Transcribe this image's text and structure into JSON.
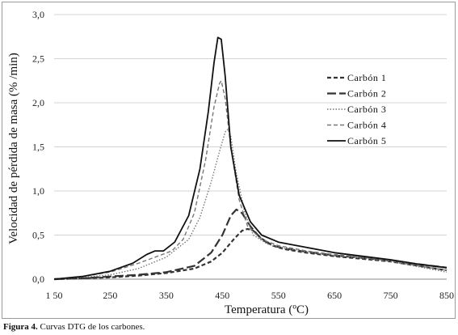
{
  "chart_data": {
    "type": "line",
    "title": "",
    "xlabel": "Temperatura (ºC)",
    "ylabel": "Velocidad de pérdida de masa (% /min)",
    "xlim": [
      150,
      850
    ],
    "ylim": [
      0,
      3.0
    ],
    "xticks": [
      150,
      250,
      350,
      450,
      550,
      650,
      750,
      850
    ],
    "xtick_labels": [
      "1 50",
      "250",
      "350",
      "450",
      "550",
      "650",
      "750",
      "850"
    ],
    "yticks": [
      0,
      0.5,
      1.0,
      1.5,
      2.0,
      2.5,
      3.0
    ],
    "ytick_labels": [
      "0,0",
      "0,5",
      "1,0",
      "1,5",
      "2,0",
      "2,5",
      "3,0"
    ],
    "grid": "horizontal",
    "legend": "right",
    "series": [
      {
        "name": "Carbón 1",
        "style": "short-dash",
        "color": "#333333",
        "points": [
          [
            150,
            0.0
          ],
          [
            200,
            0.01
          ],
          [
            250,
            0.02
          ],
          [
            300,
            0.04
          ],
          [
            350,
            0.07
          ],
          [
            400,
            0.12
          ],
          [
            430,
            0.2
          ],
          [
            450,
            0.3
          ],
          [
            470,
            0.45
          ],
          [
            485,
            0.55
          ],
          [
            495,
            0.57
          ],
          [
            505,
            0.55
          ],
          [
            520,
            0.46
          ],
          [
            540,
            0.38
          ],
          [
            560,
            0.34
          ],
          [
            600,
            0.3
          ],
          [
            650,
            0.26
          ],
          [
            700,
            0.23
          ],
          [
            750,
            0.2
          ],
          [
            800,
            0.15
          ],
          [
            850,
            0.1
          ]
        ]
      },
      {
        "name": "Carbón 2",
        "style": "long-dash",
        "color": "#333333",
        "points": [
          [
            150,
            0.0
          ],
          [
            200,
            0.01
          ],
          [
            250,
            0.03
          ],
          [
            300,
            0.05
          ],
          [
            350,
            0.08
          ],
          [
            400,
            0.15
          ],
          [
            430,
            0.3
          ],
          [
            450,
            0.5
          ],
          [
            465,
            0.72
          ],
          [
            475,
            0.79
          ],
          [
            485,
            0.75
          ],
          [
            500,
            0.6
          ],
          [
            520,
            0.45
          ],
          [
            540,
            0.38
          ],
          [
            560,
            0.35
          ],
          [
            600,
            0.31
          ],
          [
            650,
            0.27
          ],
          [
            700,
            0.24
          ],
          [
            750,
            0.21
          ],
          [
            800,
            0.17
          ],
          [
            850,
            0.13
          ]
        ]
      },
      {
        "name": "Carbón 3",
        "style": "dotted",
        "color": "#777777",
        "points": [
          [
            150,
            0.0
          ],
          [
            200,
            0.02
          ],
          [
            250,
            0.05
          ],
          [
            300,
            0.12
          ],
          [
            350,
            0.25
          ],
          [
            390,
            0.45
          ],
          [
            410,
            0.7
          ],
          [
            430,
            1.1
          ],
          [
            445,
            1.45
          ],
          [
            455,
            1.67
          ],
          [
            460,
            1.7
          ],
          [
            465,
            1.62
          ],
          [
            475,
            1.2
          ],
          [
            490,
            0.75
          ],
          [
            505,
            0.5
          ],
          [
            530,
            0.4
          ],
          [
            560,
            0.35
          ],
          [
            600,
            0.31
          ],
          [
            650,
            0.27
          ],
          [
            700,
            0.24
          ],
          [
            750,
            0.2
          ],
          [
            800,
            0.14
          ],
          [
            850,
            0.08
          ]
        ]
      },
      {
        "name": "Carbón 4",
        "style": "dashed",
        "color": "#777777",
        "points": [
          [
            150,
            0.0
          ],
          [
            200,
            0.03
          ],
          [
            250,
            0.08
          ],
          [
            300,
            0.18
          ],
          [
            330,
            0.25
          ],
          [
            360,
            0.32
          ],
          [
            380,
            0.45
          ],
          [
            400,
            0.75
          ],
          [
            420,
            1.35
          ],
          [
            435,
            1.95
          ],
          [
            445,
            2.22
          ],
          [
            448,
            2.25
          ],
          [
            455,
            2.05
          ],
          [
            465,
            1.5
          ],
          [
            480,
            0.9
          ],
          [
            495,
            0.6
          ],
          [
            520,
            0.45
          ],
          [
            550,
            0.38
          ],
          [
            600,
            0.32
          ],
          [
            650,
            0.28
          ],
          [
            700,
            0.25
          ],
          [
            750,
            0.21
          ],
          [
            800,
            0.15
          ],
          [
            850,
            0.1
          ]
        ]
      },
      {
        "name": "Carbón 5",
        "style": "solid",
        "color": "#111111",
        "points": [
          [
            150,
            0.0
          ],
          [
            200,
            0.03
          ],
          [
            250,
            0.09
          ],
          [
            290,
            0.18
          ],
          [
            315,
            0.28
          ],
          [
            330,
            0.32
          ],
          [
            345,
            0.32
          ],
          [
            365,
            0.42
          ],
          [
            390,
            0.72
          ],
          [
            410,
            1.25
          ],
          [
            425,
            1.9
          ],
          [
            435,
            2.45
          ],
          [
            442,
            2.74
          ],
          [
            448,
            2.72
          ],
          [
            455,
            2.3
          ],
          [
            465,
            1.5
          ],
          [
            480,
            0.95
          ],
          [
            500,
            0.65
          ],
          [
            520,
            0.5
          ],
          [
            550,
            0.42
          ],
          [
            600,
            0.36
          ],
          [
            650,
            0.3
          ],
          [
            700,
            0.26
          ],
          [
            750,
            0.22
          ],
          [
            800,
            0.17
          ],
          [
            850,
            0.13
          ]
        ]
      }
    ]
  },
  "caption": {
    "label": "Figura 4.",
    "text": "Curvas DTG de los carbones."
  }
}
